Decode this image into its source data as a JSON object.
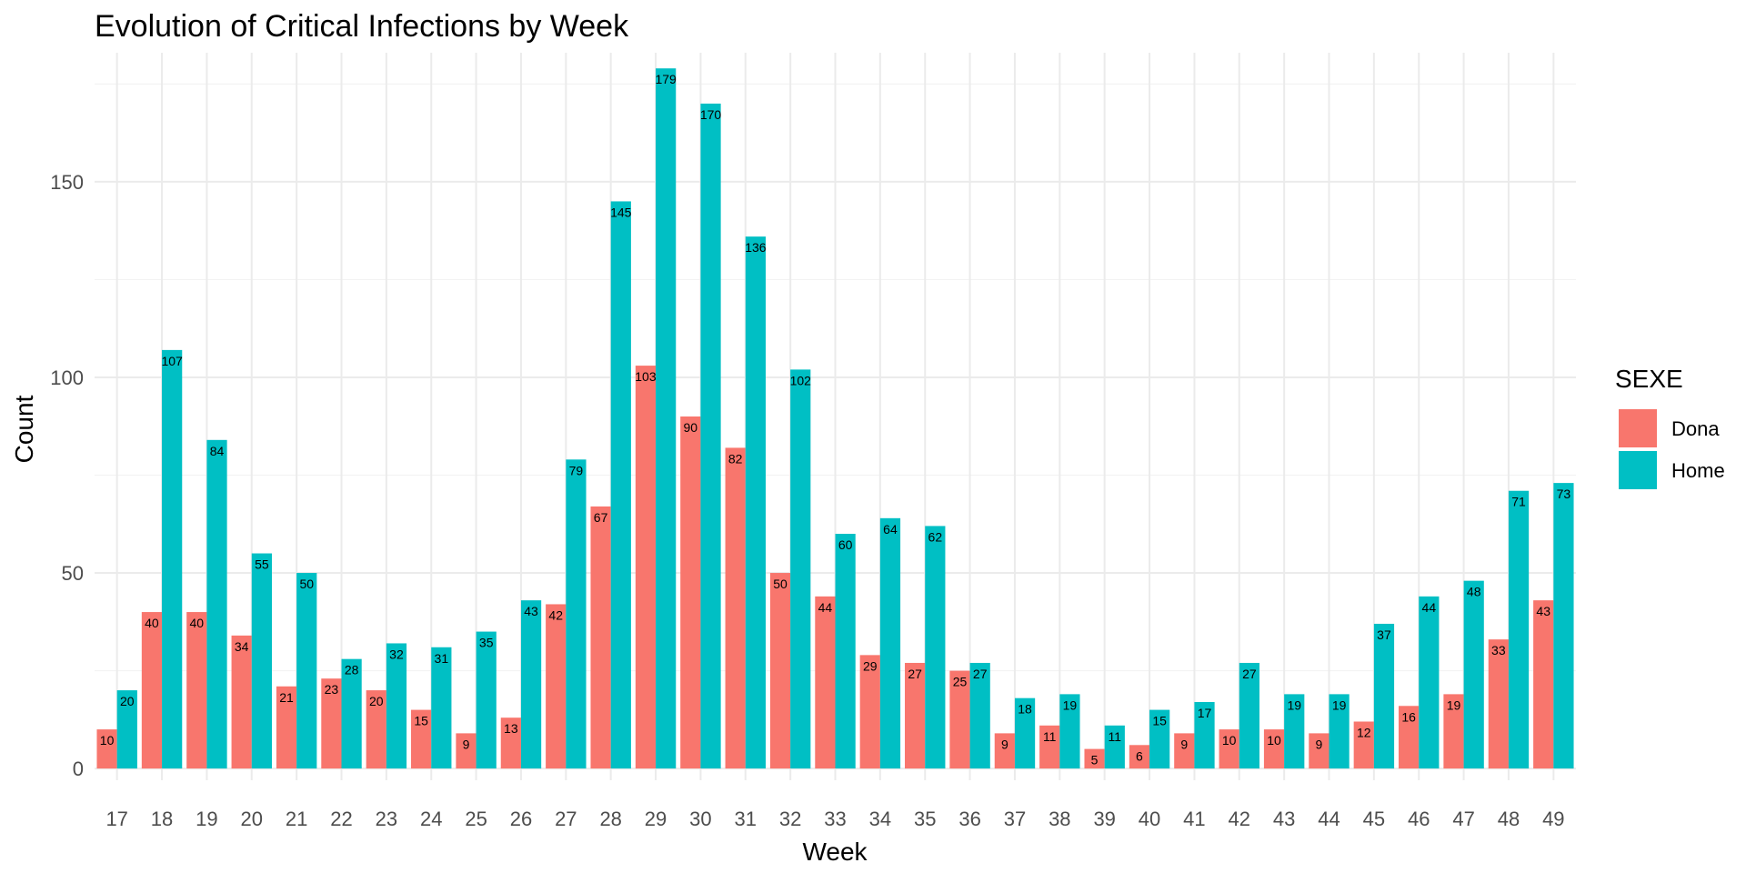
{
  "chart_data": {
    "type": "bar",
    "title": "Evolution of Critical Infections by Week",
    "xlabel": "Week",
    "ylabel": "Count",
    "ylim": [
      -3,
      183
    ],
    "yticks": [
      0,
      50,
      100,
      150
    ],
    "grid": true,
    "legend": {
      "title": "SEXE",
      "placement": "right"
    },
    "categories": [
      "17",
      "18",
      "19",
      "20",
      "21",
      "22",
      "23",
      "24",
      "25",
      "26",
      "27",
      "28",
      "29",
      "30",
      "31",
      "32",
      "33",
      "34",
      "35",
      "36",
      "37",
      "38",
      "39",
      "40",
      "41",
      "42",
      "43",
      "44",
      "45",
      "46",
      "47",
      "48",
      "49"
    ],
    "series": [
      {
        "name": "Dona",
        "color": "#f8766d",
        "values": [
          10,
          40,
          40,
          34,
          21,
          23,
          20,
          15,
          9,
          13,
          42,
          67,
          103,
          90,
          82,
          50,
          44,
          29,
          27,
          25,
          9,
          11,
          5,
          6,
          9,
          10,
          10,
          9,
          12,
          16,
          19,
          33,
          43
        ]
      },
      {
        "name": "Home",
        "color": "#00bfc4",
        "values": [
          20,
          107,
          84,
          55,
          50,
          28,
          32,
          31,
          35,
          43,
          79,
          145,
          179,
          170,
          136,
          102,
          60,
          64,
          62,
          27,
          18,
          19,
          11,
          15,
          17,
          27,
          19,
          19,
          37,
          44,
          48,
          71,
          73
        ]
      }
    ]
  }
}
